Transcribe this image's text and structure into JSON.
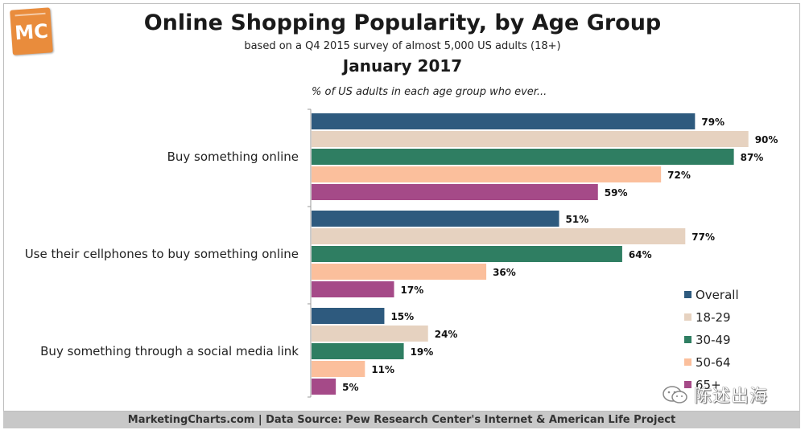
{
  "header": {
    "logo_text": "MC",
    "title": "Online Shopping Popularity, by Age Group",
    "subtitle": "based on a Q4 2015 survey of almost 5,000 US adults (18+)",
    "date": "January 2017"
  },
  "footer": {
    "text": "MarketingCharts.com | Data Source: Pew Research Center's Internet & American Life Project"
  },
  "watermark": {
    "text": "陈述出海",
    "icon": "wechat-icon"
  },
  "chart_data": {
    "type": "bar",
    "orientation": "horizontal",
    "annotation": "% of US adults in each age group who ever...",
    "categories": [
      "Buy something online",
      "Use their cellphones to buy something online",
      "Buy something through a social media link"
    ],
    "series": [
      {
        "name": "Overall",
        "color": "#2e5a7e",
        "values": [
          79,
          51,
          15
        ]
      },
      {
        "name": "18-29",
        "color": "#e6d2c0",
        "values": [
          90,
          77,
          24
        ]
      },
      {
        "name": "30-49",
        "color": "#2f7e62",
        "values": [
          87,
          64,
          19
        ]
      },
      {
        "name": "50-64",
        "color": "#fbbf9c",
        "values": [
          72,
          36,
          11
        ]
      },
      {
        "name": "65+",
        "color": "#a54a88",
        "values": [
          59,
          17,
          5
        ]
      }
    ],
    "value_suffix": "%",
    "xlim": [
      0,
      100
    ],
    "grid": false,
    "legend_position": "bottom-right"
  }
}
